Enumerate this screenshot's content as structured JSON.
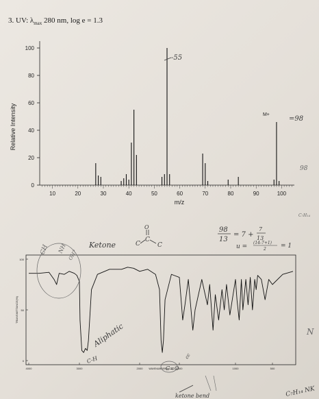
{
  "question": {
    "number": "3.",
    "label": "UV:",
    "lambda_symbol": "λ",
    "lambda_sub": "max",
    "text": "280 nm, log e = 1.3"
  },
  "chart_data": [
    {
      "type": "bar",
      "title": "",
      "xlabel": "m/z",
      "ylabel": "Relative Intensity",
      "xlim": [
        5,
        105
      ],
      "ylim": [
        0,
        105
      ],
      "x_ticks": [
        "10",
        "20",
        "30",
        "40",
        "50",
        "60",
        "70",
        "80",
        "90",
        "100"
      ],
      "y_ticks": [
        "0",
        "20",
        "40",
        "60",
        "80",
        "100"
      ],
      "x": [
        27,
        28,
        29,
        37,
        38,
        39,
        40,
        41,
        42,
        43,
        53,
        54,
        55,
        56,
        69,
        70,
        71,
        79,
        83,
        97,
        98,
        99
      ],
      "values": [
        16,
        7,
        6,
        3,
        5,
        8,
        4,
        31,
        55,
        22,
        6,
        8,
        100,
        8,
        23,
        16,
        3,
        4,
        6,
        4,
        46,
        3
      ],
      "molecular_ion_label": "M+",
      "grid": false
    },
    {
      "type": "line",
      "title": "",
      "ylabel": "TRANSMITTANCE(%)",
      "xlabel": "WAVENUMBER(cm-1)",
      "xlim": [
        4000,
        400
      ],
      "ylim": [
        0,
        100
      ],
      "x_ticks": [
        "4000",
        "3000",
        "2000",
        "1500",
        "1000",
        "500"
      ],
      "y_ticks": [
        "100",
        "50",
        "0"
      ],
      "x": [
        4000,
        3800,
        3600,
        3500,
        3450,
        3400,
        3300,
        3200,
        3100,
        3050,
        3000,
        2990,
        2960,
        2930,
        2900,
        2870,
        2850,
        2800,
        2700,
        2500,
        2300,
        2200,
        2100,
        2000,
        1900,
        1800,
        1750,
        1730,
        1715,
        1700,
        1680,
        1600,
        1500,
        1470,
        1450,
        1420,
        1380,
        1360,
        1300,
        1250,
        1230,
        1200,
        1180,
        1150,
        1120,
        1100,
        1080,
        1050,
        1000,
        980,
        950,
        920,
        900,
        860,
        830,
        800,
        770,
        740,
        720,
        700,
        650,
        600,
        550,
        500,
        450,
        400
      ],
      "values": [
        86,
        86,
        87,
        80,
        75,
        86,
        85,
        88,
        86,
        84,
        78,
        40,
        10,
        8,
        12,
        10,
        20,
        70,
        85,
        90,
        90,
        92,
        91,
        88,
        90,
        85,
        70,
        20,
        8,
        20,
        60,
        85,
        82,
        40,
        55,
        80,
        30,
        50,
        80,
        55,
        75,
        30,
        65,
        40,
        70,
        50,
        75,
        45,
        80,
        60,
        40,
        80,
        50,
        80,
        55,
        82,
        50,
        80,
        70,
        84,
        80,
        60,
        80,
        75,
        85,
        88
      ]
    }
  ],
  "annotations": {
    "peak_55": "-55",
    "m98": "=98",
    "side_98": "98",
    "formula_top": "C₇H₁₄",
    "fraction_num": "98",
    "fraction_den": "13",
    "eq1": "= 7 +",
    "eq1_frac_num": "7",
    "eq1_frac_den": "13",
    "unsat_u": "u =",
    "unsat_num": "(14-7+1)",
    "unsat_den": "2",
    "unsat_result": "= 1",
    "ketone": "Ketone",
    "carbonyl_c1": "C",
    "carbonyl_c2": "C",
    "carbonyl_c3": "C",
    "carbonyl_o": "O",
    "ch_note": "CH",
    "nh_note": "NH",
    "ch_note2": "OH?",
    "aliphatic": "Aliphatic",
    "ch_bond": "C-H",
    "co_bond": "C=O",
    "cc_bond": "cc",
    "ketone_bend": "ketone bend",
    "side_n": "N",
    "bottom_formula": "C₇H₁₄ NK"
  }
}
